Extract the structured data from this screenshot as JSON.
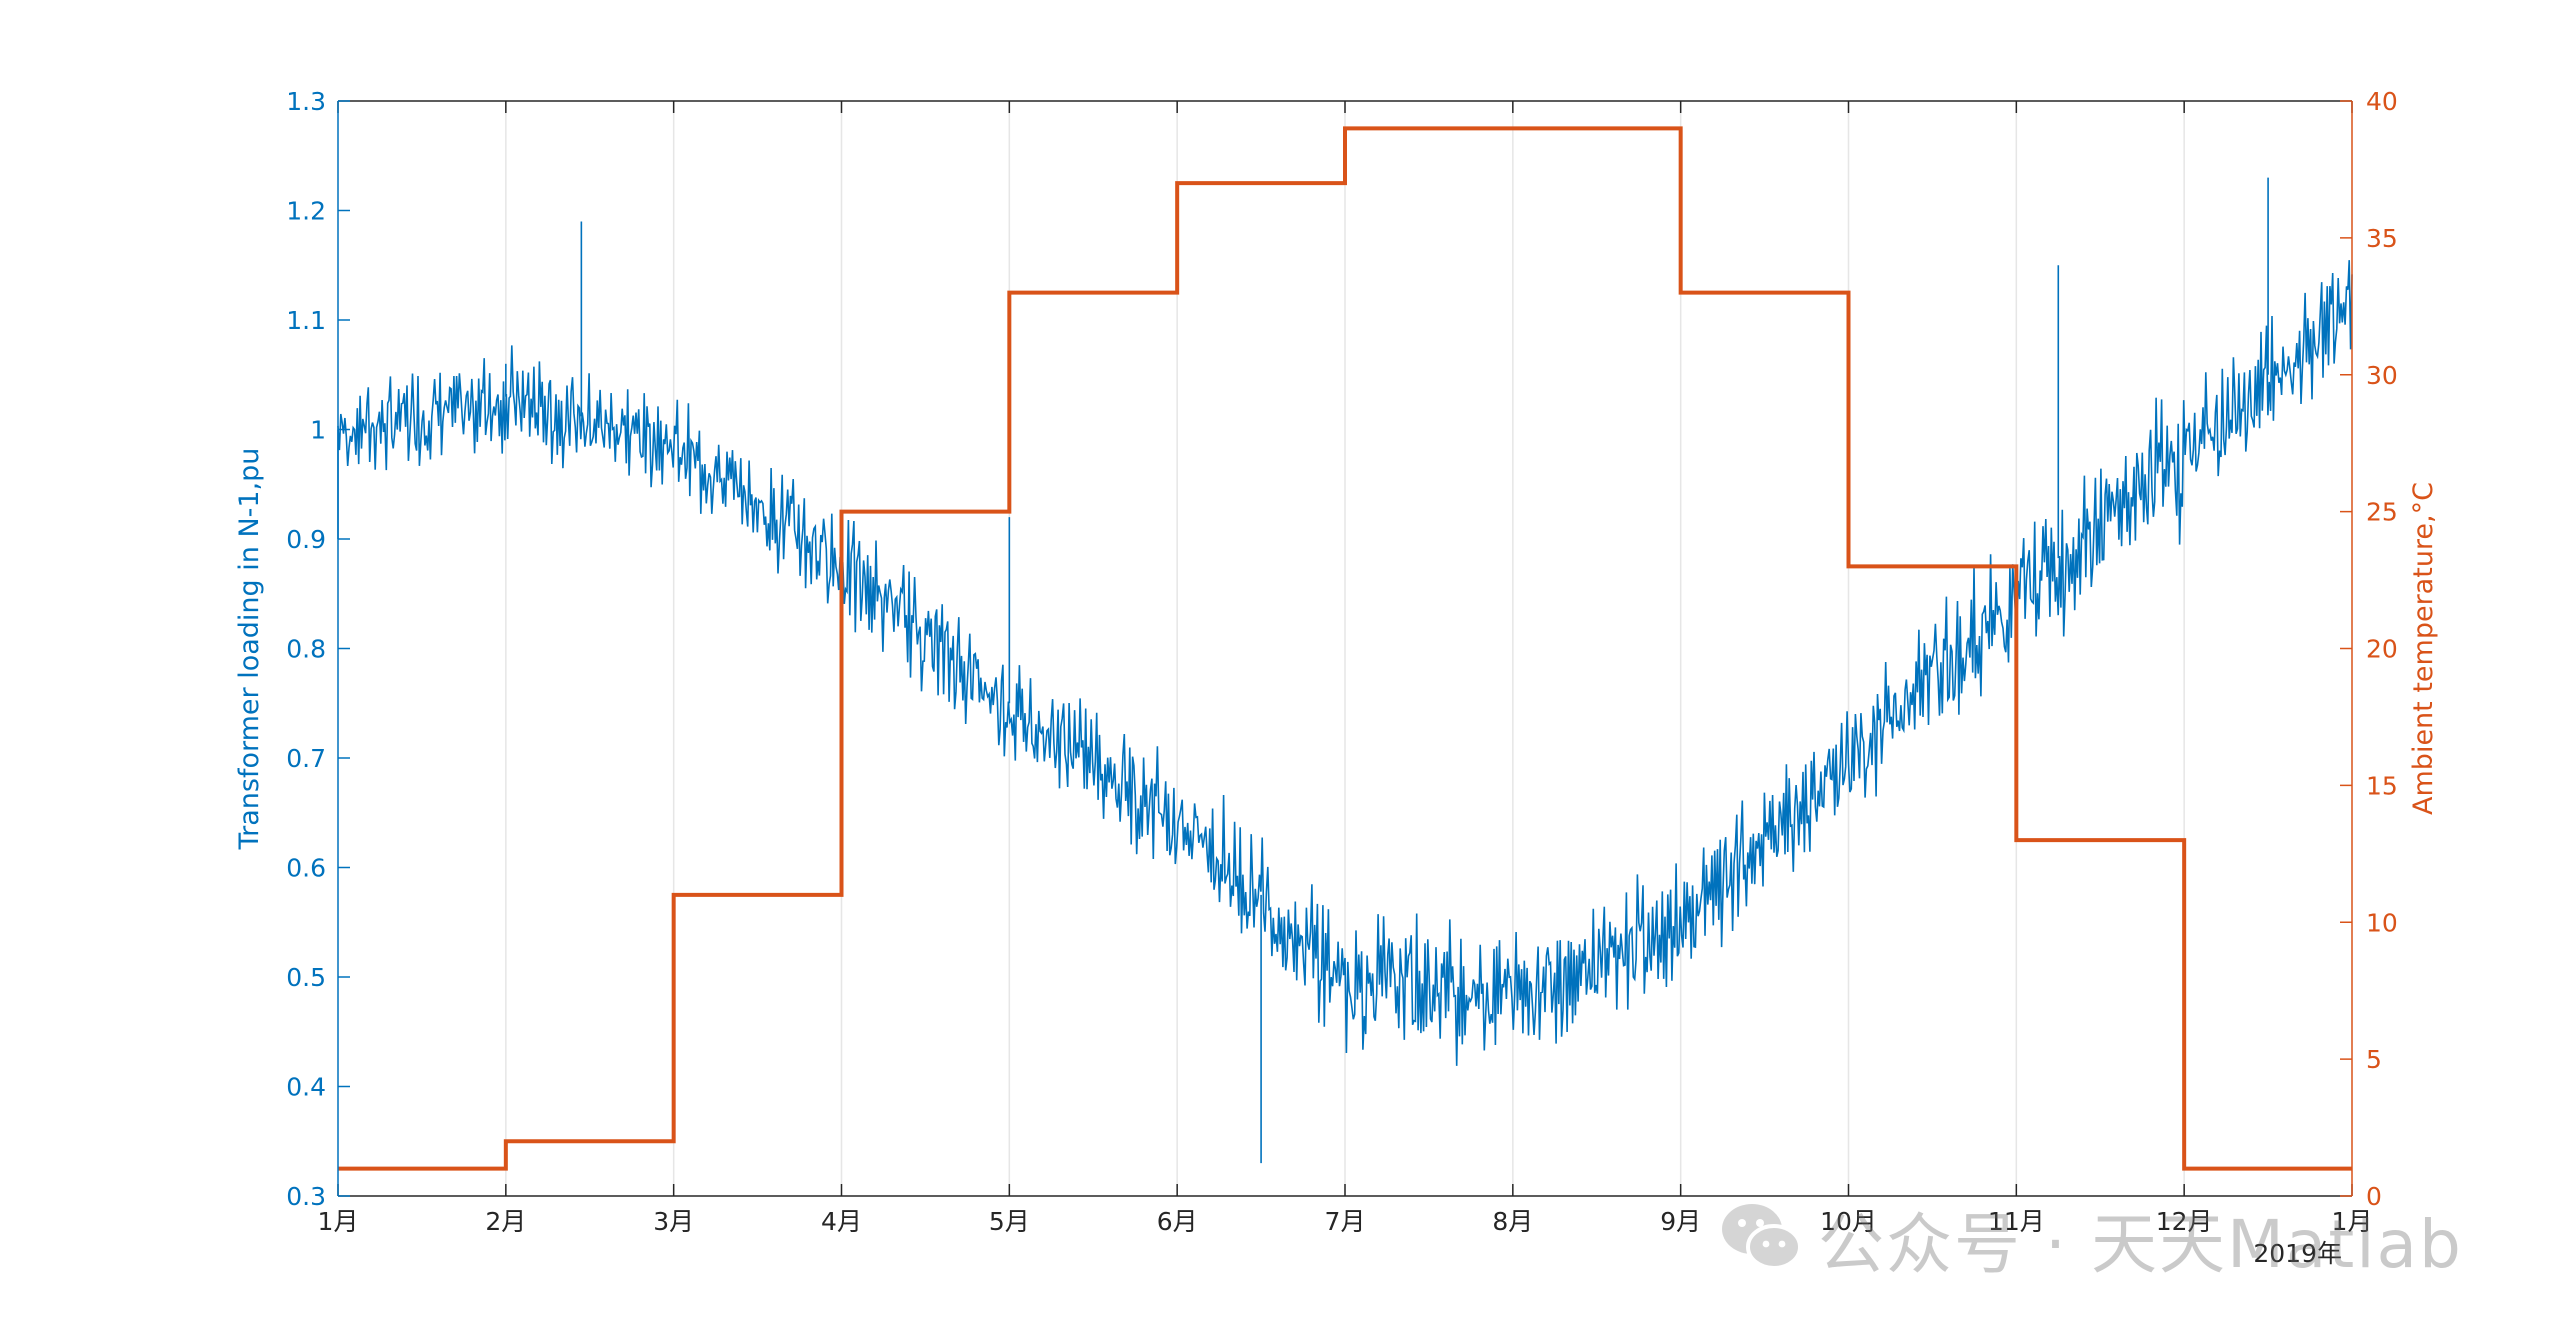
{
  "chart_data": {
    "type": "line",
    "x_tick_labels": [
      "1月",
      "2月",
      "3月",
      "4月",
      "5月",
      "6月",
      "7月",
      "8月",
      "9月",
      "10月",
      "11月",
      "12月",
      "1月"
    ],
    "x_year_label": "2019年",
    "grid": "vertical lines at month ticks",
    "left_axis": {
      "label": "Transformer loading in N-1,pu",
      "ylim": [
        0.3,
        1.3
      ],
      "ticks": [
        "0.3",
        "0.4",
        "0.5",
        "0.6",
        "0.7",
        "0.8",
        "0.9",
        "1",
        "1.1",
        "1.2",
        "1.3"
      ],
      "color": "#0072BD"
    },
    "right_axis": {
      "label": "Ambient temperature,°C",
      "ylim": [
        0,
        40
      ],
      "ticks": [
        "0",
        "5",
        "10",
        "15",
        "20",
        "25",
        "30",
        "35",
        "40"
      ],
      "color": "#D95319"
    },
    "series": [
      {
        "axis": "left",
        "color": "#0072BD",
        "style": "daily-oscillating line (hourly samples)",
        "monthly_center": [
          1.0,
          1.03,
          0.99,
          0.88,
          0.75,
          0.65,
          0.5,
          0.49,
          0.55,
          0.7,
          0.85,
          0.98,
          1.12
        ],
        "monthly_oscillation_amplitude": [
          0.06,
          0.07,
          0.06,
          0.07,
          0.07,
          0.08,
          0.09,
          0.09,
          0.08,
          0.08,
          0.09,
          0.1,
          0.07
        ],
        "peak_points": [
          {
            "x": "1月",
            "y": 0.9
          },
          {
            "x": "2月",
            "y": 1.06
          },
          {
            "x": "2月下旬",
            "y": 1.19
          },
          {
            "x": "5月",
            "y": 0.92
          },
          {
            "x": "6月中旬",
            "y": 0.33
          },
          {
            "x": "11月中旬",
            "y": 1.15
          },
          {
            "x": "12月下旬",
            "y": 1.23
          }
        ]
      },
      {
        "axis": "right",
        "color": "#D95319",
        "style": "step",
        "month_values": [
          1,
          2,
          11,
          25,
          33,
          37,
          39,
          39,
          33,
          23,
          13,
          1
        ]
      }
    ]
  },
  "watermark": {
    "icon": "wechat-icon",
    "text": "公众号 · 天天Matlab"
  }
}
